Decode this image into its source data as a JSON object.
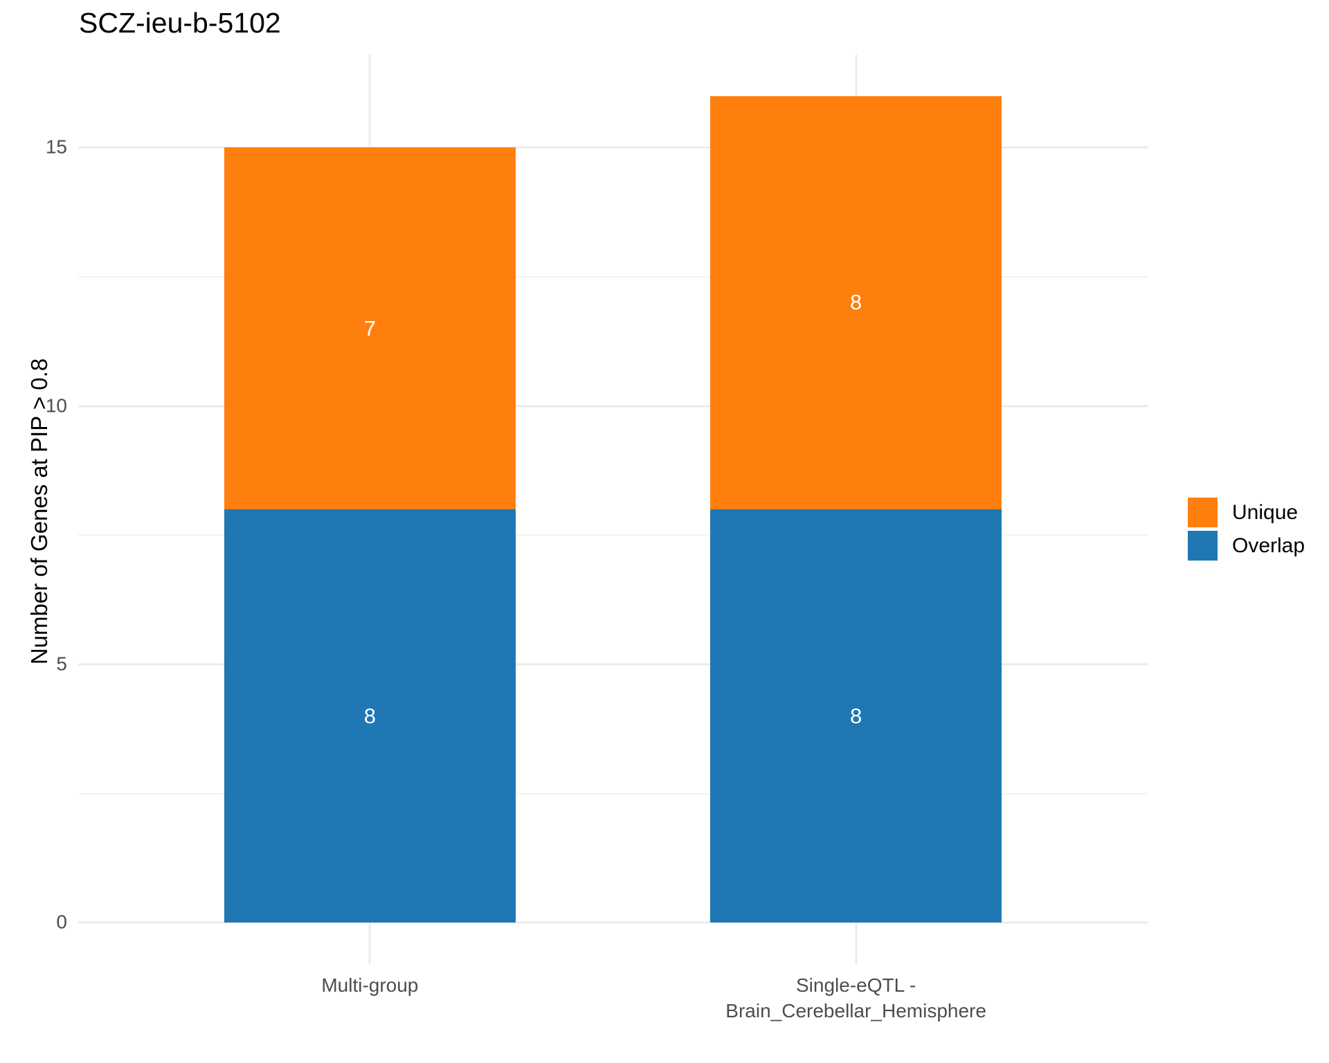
{
  "chart_data": {
    "type": "bar",
    "stacked": true,
    "title": "SCZ-ieu-b-5102",
    "xlabel": "",
    "ylabel": "Number of Genes at PIP > 0.8",
    "categories": [
      "Multi-group",
      "Single-eQTL -\nBrain_Cerebellar_Hemisphere"
    ],
    "series": [
      {
        "name": "Overlap",
        "color": "#1f77b4",
        "values": [
          8,
          8
        ]
      },
      {
        "name": "Unique",
        "color": "#ff7f0e",
        "values": [
          7,
          8
        ]
      }
    ],
    "bar_value_labels_shown": true,
    "ylim": [
      0,
      16
    ],
    "yticks": [
      0,
      5,
      10,
      15
    ],
    "yticks_minor": [
      2.5,
      7.5,
      12.5
    ],
    "grid": true,
    "legend": {
      "position": "right",
      "entries": [
        {
          "label": "Unique",
          "color": "#ff7f0e"
        },
        {
          "label": "Overlap",
          "color": "#1f77b4"
        }
      ]
    },
    "colors": {
      "background": "#ffffff",
      "grid_major": "#ebebeb",
      "grid_minor": "#f2f2f2",
      "tick_text": "#4d4d4d",
      "title_text": "#000000",
      "bar_label_text": "#ffffff"
    }
  }
}
